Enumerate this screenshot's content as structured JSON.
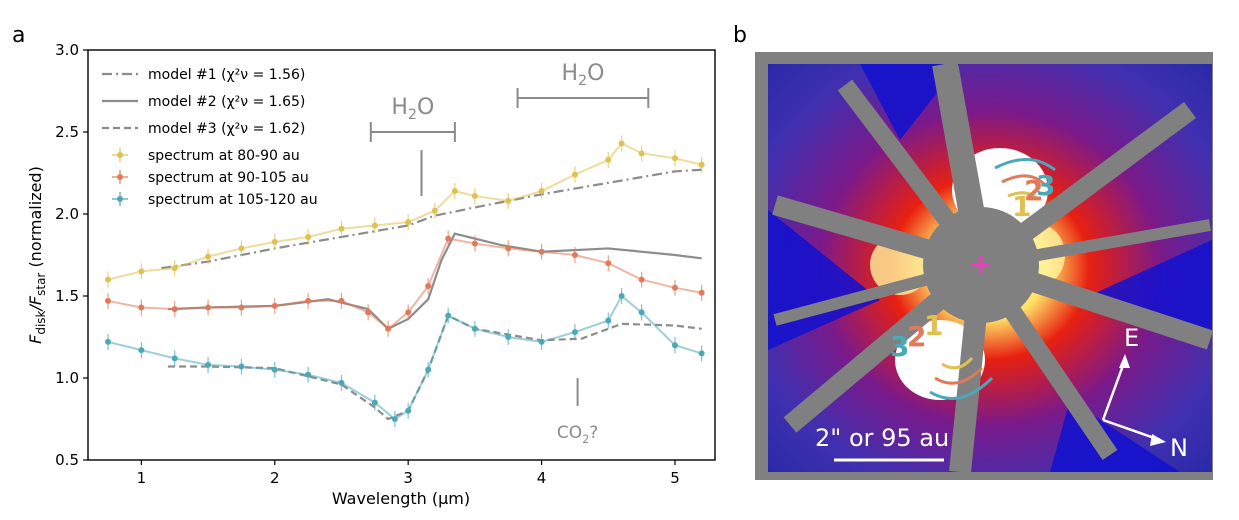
{
  "figure": {
    "panel_a_label": "a",
    "panel_b_label": "b"
  },
  "chart_data": [
    {
      "type": "line",
      "xlabel": "Wavelength (μm)",
      "ylabel": "F_disk/F_star (normalized)",
      "xlim": [
        0.6,
        5.3
      ],
      "ylim": [
        0.5,
        3.0
      ],
      "xticks": [
        "1",
        "2",
        "3",
        "4",
        "5"
      ],
      "yticks": [
        "0.5",
        "1.0",
        "1.5",
        "2.0",
        "2.5",
        "3.0"
      ],
      "grid": false,
      "legend_position": "top-left",
      "annotations": [
        {
          "text": "H2O",
          "x_range": [
            2.72,
            3.35
          ]
        },
        {
          "text": "H2O",
          "x_range": [
            3.82,
            4.8
          ]
        },
        {
          "text": "CO2?",
          "x": 4.27
        }
      ],
      "models": [
        {
          "name": "model #1 (χ²ν = 1.56)",
          "style": "dash-dot",
          "color": "#8c8c8c",
          "x": [
            1.15,
            1.5,
            2.0,
            2.5,
            3.0,
            3.2,
            3.5,
            4.0,
            4.5,
            5.0,
            5.2
          ],
          "y": [
            1.67,
            1.71,
            1.79,
            1.86,
            1.93,
            1.99,
            2.04,
            2.12,
            2.19,
            2.26,
            2.27
          ]
        },
        {
          "name": "model #2 (χ²ν = 1.65)",
          "style": "solid",
          "color": "#8c8c8c",
          "x": [
            1.2,
            1.5,
            2.0,
            2.4,
            2.7,
            2.85,
            3.0,
            3.15,
            3.25,
            3.35,
            3.7,
            4.0,
            4.5,
            5.0,
            5.2
          ],
          "y": [
            1.42,
            1.43,
            1.44,
            1.48,
            1.42,
            1.3,
            1.36,
            1.48,
            1.72,
            1.88,
            1.81,
            1.77,
            1.79,
            1.75,
            1.73
          ]
        },
        {
          "name": "model #3 (χ²ν = 1.62)",
          "style": "dashed",
          "color": "#8c8c8c",
          "x": [
            1.2,
            1.5,
            2.0,
            2.5,
            2.75,
            2.85,
            3.0,
            3.15,
            3.3,
            3.5,
            4.0,
            4.3,
            4.6,
            5.0,
            5.2
          ],
          "y": [
            1.07,
            1.07,
            1.06,
            0.96,
            0.82,
            0.75,
            0.8,
            1.05,
            1.38,
            1.3,
            1.23,
            1.24,
            1.33,
            1.32,
            1.3
          ]
        }
      ],
      "series": [
        {
          "name": "spectrum at 80-90 au",
          "color": "#e0c050",
          "x": [
            0.75,
            1.0,
            1.25,
            1.5,
            1.75,
            2.0,
            2.25,
            2.5,
            2.75,
            3.0,
            3.2,
            3.35,
            3.5,
            3.75,
            4.0,
            4.25,
            4.5,
            4.6,
            4.75,
            5.0,
            5.2
          ],
          "y": [
            1.6,
            1.65,
            1.67,
            1.74,
            1.79,
            1.83,
            1.86,
            1.91,
            1.93,
            1.95,
            2.02,
            2.14,
            2.11,
            2.08,
            2.14,
            2.24,
            2.33,
            2.43,
            2.37,
            2.34,
            2.3
          ]
        },
        {
          "name": "spectrum at 90-105 au",
          "color": "#e07a5a",
          "x": [
            0.75,
            1.0,
            1.25,
            1.5,
            1.75,
            2.0,
            2.25,
            2.5,
            2.7,
            2.85,
            3.0,
            3.15,
            3.3,
            3.5,
            3.75,
            4.0,
            4.25,
            4.5,
            4.75,
            5.0,
            5.2
          ],
          "y": [
            1.47,
            1.43,
            1.42,
            1.43,
            1.43,
            1.44,
            1.47,
            1.47,
            1.4,
            1.3,
            1.4,
            1.56,
            1.85,
            1.82,
            1.79,
            1.77,
            1.75,
            1.7,
            1.6,
            1.55,
            1.52
          ]
        },
        {
          "name": "spectrum at 105-120 au",
          "color": "#4aa8b8",
          "x": [
            0.75,
            1.0,
            1.25,
            1.5,
            1.75,
            2.0,
            2.25,
            2.5,
            2.75,
            2.9,
            3.0,
            3.15,
            3.3,
            3.5,
            3.75,
            4.0,
            4.25,
            4.5,
            4.6,
            4.75,
            5.0,
            5.2
          ],
          "y": [
            1.22,
            1.17,
            1.12,
            1.08,
            1.07,
            1.05,
            1.02,
            0.97,
            0.85,
            0.75,
            0.8,
            1.05,
            1.38,
            1.3,
            1.25,
            1.22,
            1.28,
            1.35,
            1.5,
            1.4,
            1.2,
            1.15
          ]
        }
      ]
    },
    {
      "type": "heatmap",
      "scale_label": "2\" or 95 au",
      "compass": {
        "e_label": "E",
        "n_label": "N"
      },
      "region_labels": [
        "1",
        "2",
        "3",
        "1",
        "2",
        "3"
      ]
    }
  ]
}
